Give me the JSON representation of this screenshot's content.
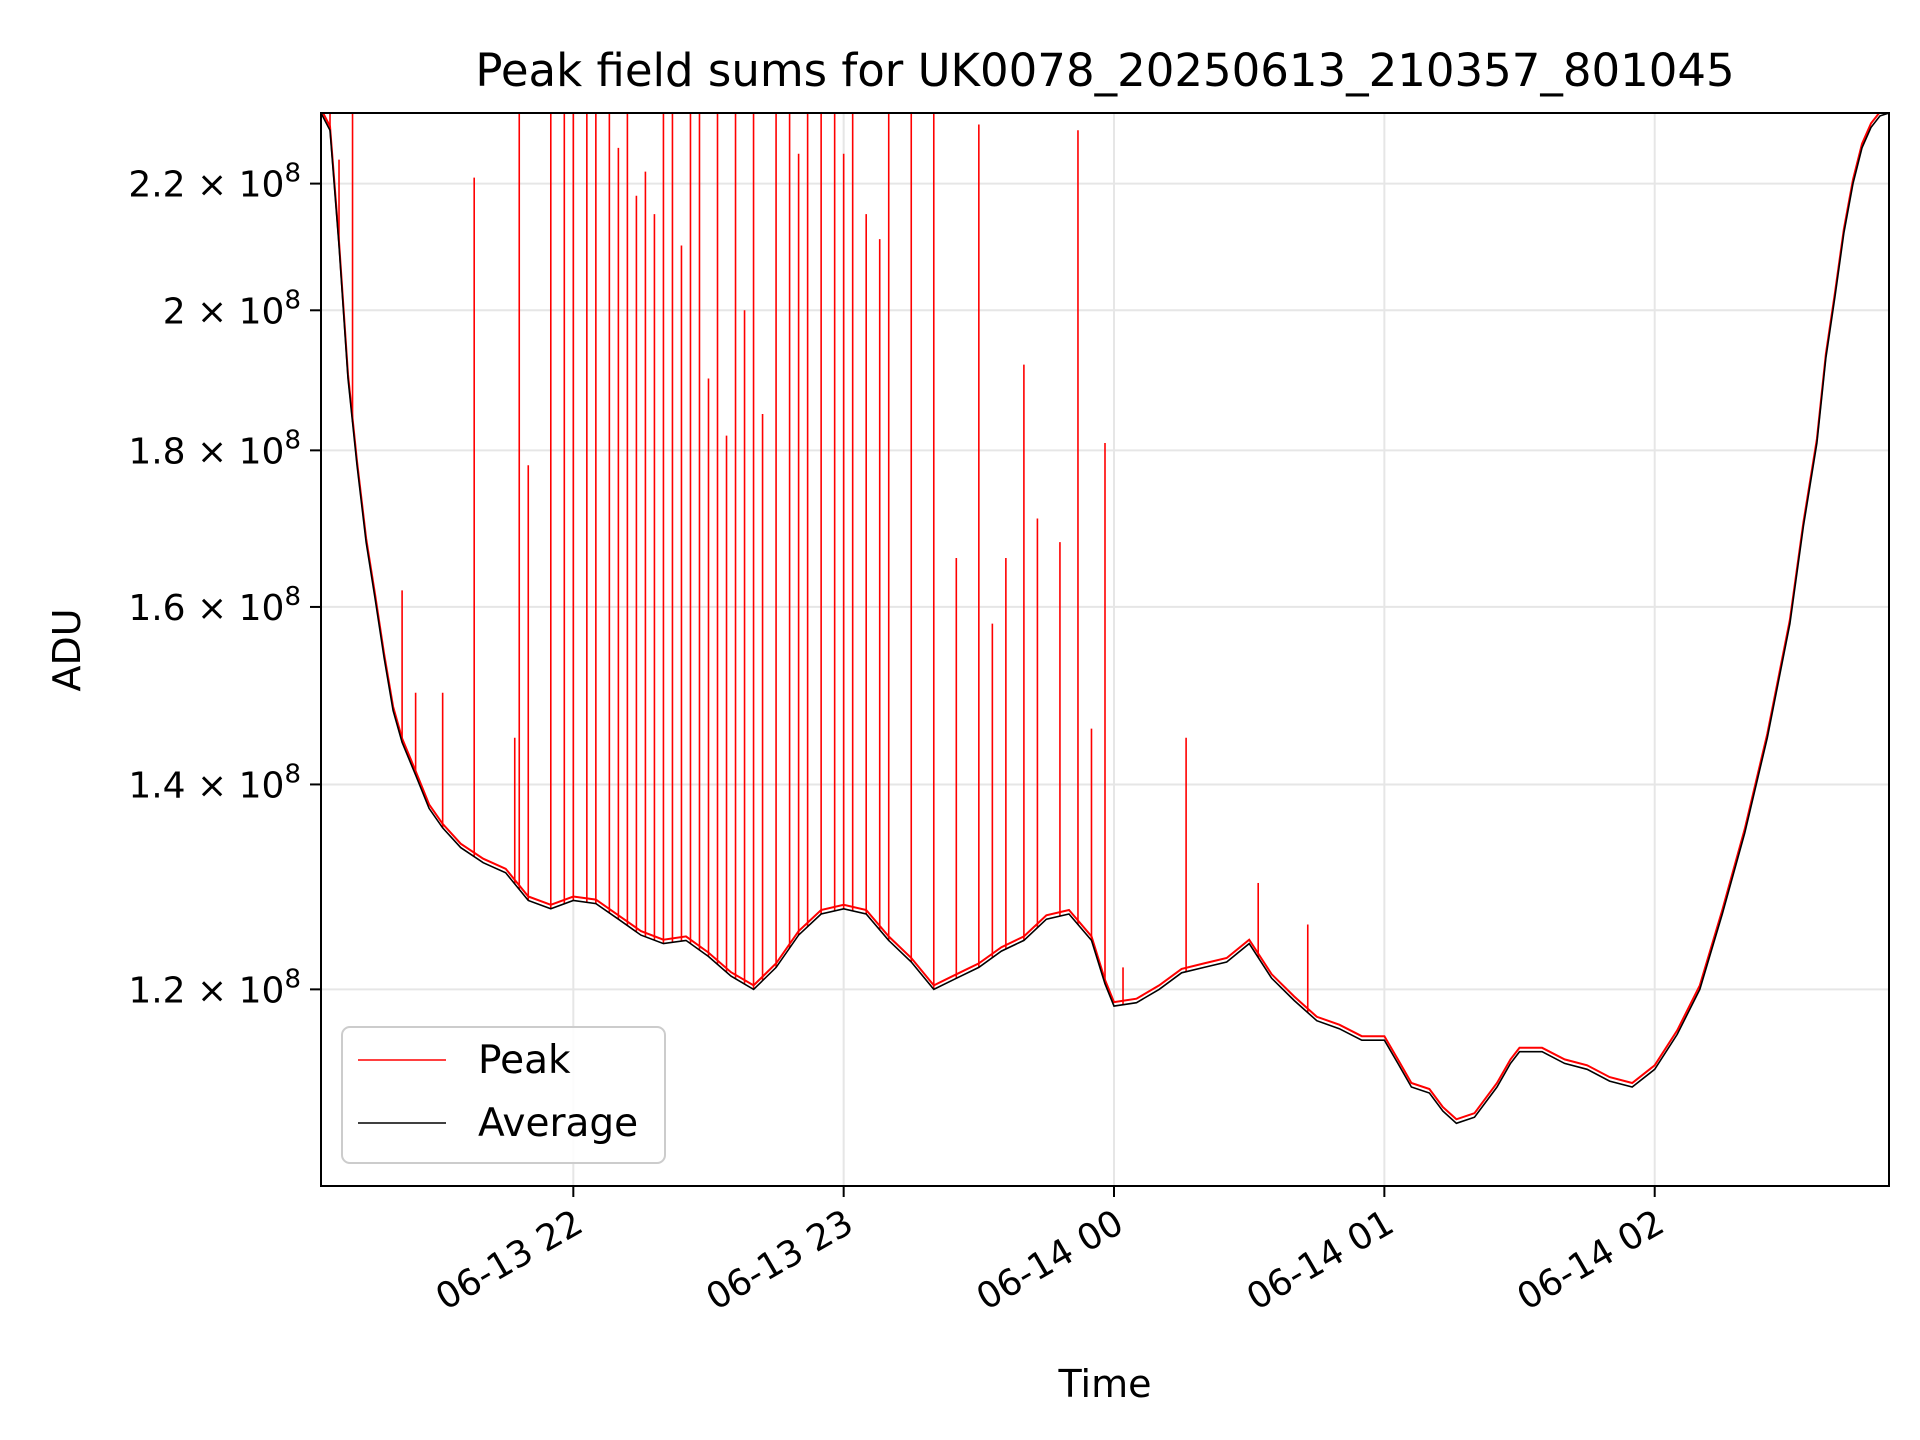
{
  "chart_data": {
    "type": "line",
    "title": "Peak field sums for UK0078_20250613_210357_801045",
    "xlabel": "Time",
    "ylabel": "ADU",
    "y_scale": "log",
    "ylim": [
      103500000,
      232000000
    ],
    "xlim": [
      "2025-06-13 21:04",
      "2025-06-14 02:52"
    ],
    "grid": true,
    "legend": {
      "placement": "lower-left",
      "entries": [
        "Peak",
        "Average"
      ]
    },
    "x_ticks": [
      {
        "value": "2025-06-13 22:00",
        "label": "06-13 22"
      },
      {
        "value": "2025-06-13 23:00",
        "label": "06-13 23"
      },
      {
        "value": "2025-06-14 00:00",
        "label": "06-14 00"
      },
      {
        "value": "2025-06-14 01:00",
        "label": "06-14 01"
      },
      {
        "value": "2025-06-14 02:00",
        "label": "06-14 02"
      }
    ],
    "y_ticks": [
      {
        "value": 120000000,
        "mant": "1.2",
        "exp": "8"
      },
      {
        "value": 140000000,
        "mant": "1.4",
        "exp": "8"
      },
      {
        "value": 160000000,
        "mant": "1.6",
        "exp": "8"
      },
      {
        "value": 180000000,
        "mant": "1.8",
        "exp": "8"
      },
      {
        "value": 200000000,
        "mant": "2",
        "exp": "8"
      },
      {
        "value": 220000000,
        "mant": "2.2",
        "exp": "8"
      }
    ],
    "series": [
      {
        "name": "Average",
        "color": "#000000",
        "x": [
          "2025-06-13 21:04",
          "2025-06-13 21:06",
          "2025-06-13 21:08",
          "2025-06-13 21:10",
          "2025-06-13 21:12",
          "2025-06-13 21:14",
          "2025-06-13 21:16",
          "2025-06-13 21:18",
          "2025-06-13 21:20",
          "2025-06-13 21:22",
          "2025-06-13 21:25",
          "2025-06-13 21:28",
          "2025-06-13 21:31",
          "2025-06-13 21:35",
          "2025-06-13 21:40",
          "2025-06-13 21:45",
          "2025-06-13 21:50",
          "2025-06-13 21:55",
          "2025-06-13 22:00",
          "2025-06-13 22:05",
          "2025-06-13 22:10",
          "2025-06-13 22:15",
          "2025-06-13 22:20",
          "2025-06-13 22:25",
          "2025-06-13 22:30",
          "2025-06-13 22:35",
          "2025-06-13 22:40",
          "2025-06-13 22:45",
          "2025-06-13 22:50",
          "2025-06-13 22:55",
          "2025-06-13 23:00",
          "2025-06-13 23:05",
          "2025-06-13 23:10",
          "2025-06-13 23:15",
          "2025-06-13 23:20",
          "2025-06-13 23:25",
          "2025-06-13 23:30",
          "2025-06-13 23:35",
          "2025-06-13 23:40",
          "2025-06-13 23:45",
          "2025-06-13 23:50",
          "2025-06-13 23:55",
          "2025-06-13 23:58",
          "2025-06-14 00:00",
          "2025-06-14 00:05",
          "2025-06-14 00:10",
          "2025-06-14 00:15",
          "2025-06-14 00:20",
          "2025-06-14 00:25",
          "2025-06-14 00:30",
          "2025-06-14 00:35",
          "2025-06-14 00:40",
          "2025-06-14 00:45",
          "2025-06-14 00:50",
          "2025-06-14 00:55",
          "2025-06-14 01:00",
          "2025-06-14 01:03",
          "2025-06-14 01:06",
          "2025-06-14 01:10",
          "2025-06-14 01:13",
          "2025-06-14 01:16",
          "2025-06-14 01:20",
          "2025-06-14 01:25",
          "2025-06-14 01:28",
          "2025-06-14 01:30",
          "2025-06-14 01:35",
          "2025-06-14 01:40",
          "2025-06-14 01:45",
          "2025-06-14 01:50",
          "2025-06-14 01:55",
          "2025-06-14 02:00",
          "2025-06-14 02:05",
          "2025-06-14 02:10",
          "2025-06-14 02:15",
          "2025-06-14 02:20",
          "2025-06-14 02:25",
          "2025-06-14 02:30",
          "2025-06-14 02:33",
          "2025-06-14 02:36",
          "2025-06-14 02:38",
          "2025-06-14 02:40",
          "2025-06-14 02:42",
          "2025-06-14 02:44",
          "2025-06-14 02:46",
          "2025-06-14 02:48",
          "2025-06-14 02:50",
          "2025-06-14 02:52"
        ],
        "y": [
          232000000,
          229000000,
          210000000,
          190000000,
          178000000,
          168000000,
          161000000,
          154000000,
          148000000,
          144500000,
          141000000,
          137500000,
          135500000,
          133500000,
          132000000,
          131000000,
          128300000,
          127500000,
          128300000,
          128000000,
          126500000,
          125000000,
          124200000,
          124500000,
          123000000,
          121200000,
          120000000,
          122000000,
          125000000,
          127000000,
          127500000,
          127000000,
          124500000,
          122500000,
          120000000,
          121000000,
          122000000,
          123500000,
          124500000,
          126500000,
          127000000,
          124500000,
          120500000,
          118500000,
          118800000,
          120000000,
          121500000,
          122000000,
          122500000,
          124200000,
          121000000,
          119000000,
          117200000,
          116500000,
          115500000,
          115500000,
          113500000,
          111500000,
          111000000,
          109500000,
          108500000,
          109000000,
          111500000,
          113500000,
          114500000,
          114500000,
          113500000,
          113000000,
          112000000,
          111500000,
          113000000,
          116000000,
          120000000,
          127000000,
          135000000,
          145000000,
          158000000,
          170000000,
          181000000,
          193000000,
          202000000,
          212000000,
          220000000,
          226000000,
          229500000,
          231500000,
          232000000
        ]
      },
      {
        "name": "Peak",
        "color": "#ff0000",
        "spikes": [
          {
            "t": "2025-06-13 21:06",
            "v": 232000000
          },
          {
            "t": "2025-06-13 21:08",
            "v": 224000000
          },
          {
            "t": "2025-06-13 21:11",
            "v": 232000000
          },
          {
            "t": "2025-06-13 21:22",
            "v": 162000000
          },
          {
            "t": "2025-06-13 21:25",
            "v": 150000000
          },
          {
            "t": "2025-06-13 21:31",
            "v": 150000000
          },
          {
            "t": "2025-06-13 21:38",
            "v": 221000000
          },
          {
            "t": "2025-06-13 21:47",
            "v": 145000000
          },
          {
            "t": "2025-06-13 21:48",
            "v": 232000000
          },
          {
            "t": "2025-06-13 21:50",
            "v": 178000000
          },
          {
            "t": "2025-06-13 21:55",
            "v": 232000000
          },
          {
            "t": "2025-06-13 21:58",
            "v": 232000000
          },
          {
            "t": "2025-06-13 22:00",
            "v": 232000000
          },
          {
            "t": "2025-06-13 22:03",
            "v": 232000000
          },
          {
            "t": "2025-06-13 22:05",
            "v": 232000000
          },
          {
            "t": "2025-06-13 22:08",
            "v": 232000000
          },
          {
            "t": "2025-06-13 22:10",
            "v": 226000000
          },
          {
            "t": "2025-06-13 22:12",
            "v": 232000000
          },
          {
            "t": "2025-06-13 22:14",
            "v": 218000000
          },
          {
            "t": "2025-06-13 22:16",
            "v": 222000000
          },
          {
            "t": "2025-06-13 22:18",
            "v": 215000000
          },
          {
            "t": "2025-06-13 22:20",
            "v": 232000000
          },
          {
            "t": "2025-06-13 22:22",
            "v": 232000000
          },
          {
            "t": "2025-06-13 22:24",
            "v": 210000000
          },
          {
            "t": "2025-06-13 22:26",
            "v": 232000000
          },
          {
            "t": "2025-06-13 22:28",
            "v": 232000000
          },
          {
            "t": "2025-06-13 22:30",
            "v": 190000000
          },
          {
            "t": "2025-06-13 22:32",
            "v": 232000000
          },
          {
            "t": "2025-06-13 22:34",
            "v": 182000000
          },
          {
            "t": "2025-06-13 22:36",
            "v": 232000000
          },
          {
            "t": "2025-06-13 22:38",
            "v": 200000000
          },
          {
            "t": "2025-06-13 22:40",
            "v": 232000000
          },
          {
            "t": "2025-06-13 22:42",
            "v": 185000000
          },
          {
            "t": "2025-06-13 22:45",
            "v": 232000000
          },
          {
            "t": "2025-06-13 22:48",
            "v": 232000000
          },
          {
            "t": "2025-06-13 22:50",
            "v": 225000000
          },
          {
            "t": "2025-06-13 22:52",
            "v": 232000000
          },
          {
            "t": "2025-06-13 22:55",
            "v": 232000000
          },
          {
            "t": "2025-06-13 22:58",
            "v": 232000000
          },
          {
            "t": "2025-06-13 23:00",
            "v": 225000000
          },
          {
            "t": "2025-06-13 23:02",
            "v": 232000000
          },
          {
            "t": "2025-06-13 23:05",
            "v": 215000000
          },
          {
            "t": "2025-06-13 23:08",
            "v": 211000000
          },
          {
            "t": "2025-06-13 23:10",
            "v": 232000000
          },
          {
            "t": "2025-06-13 23:15",
            "v": 232000000
          },
          {
            "t": "2025-06-13 23:20",
            "v": 232000000
          },
          {
            "t": "2025-06-13 23:25",
            "v": 166000000
          },
          {
            "t": "2025-06-13 23:30",
            "v": 230000000
          },
          {
            "t": "2025-06-13 23:33",
            "v": 158000000
          },
          {
            "t": "2025-06-13 23:36",
            "v": 166000000
          },
          {
            "t": "2025-06-13 23:40",
            "v": 192000000
          },
          {
            "t": "2025-06-13 23:43",
            "v": 171000000
          },
          {
            "t": "2025-06-13 23:48",
            "v": 168000000
          },
          {
            "t": "2025-06-13 23:52",
            "v": 229000000
          },
          {
            "t": "2025-06-13 23:55",
            "v": 146000000
          },
          {
            "t": "2025-06-13 23:58",
            "v": 181000000
          },
          {
            "t": "2025-06-14 00:02",
            "v": 122000000
          },
          {
            "t": "2025-06-14 00:16",
            "v": 145000000
          },
          {
            "t": "2025-06-14 00:32",
            "v": 130000000
          },
          {
            "t": "2025-06-14 00:43",
            "v": 126000000
          }
        ]
      }
    ]
  }
}
